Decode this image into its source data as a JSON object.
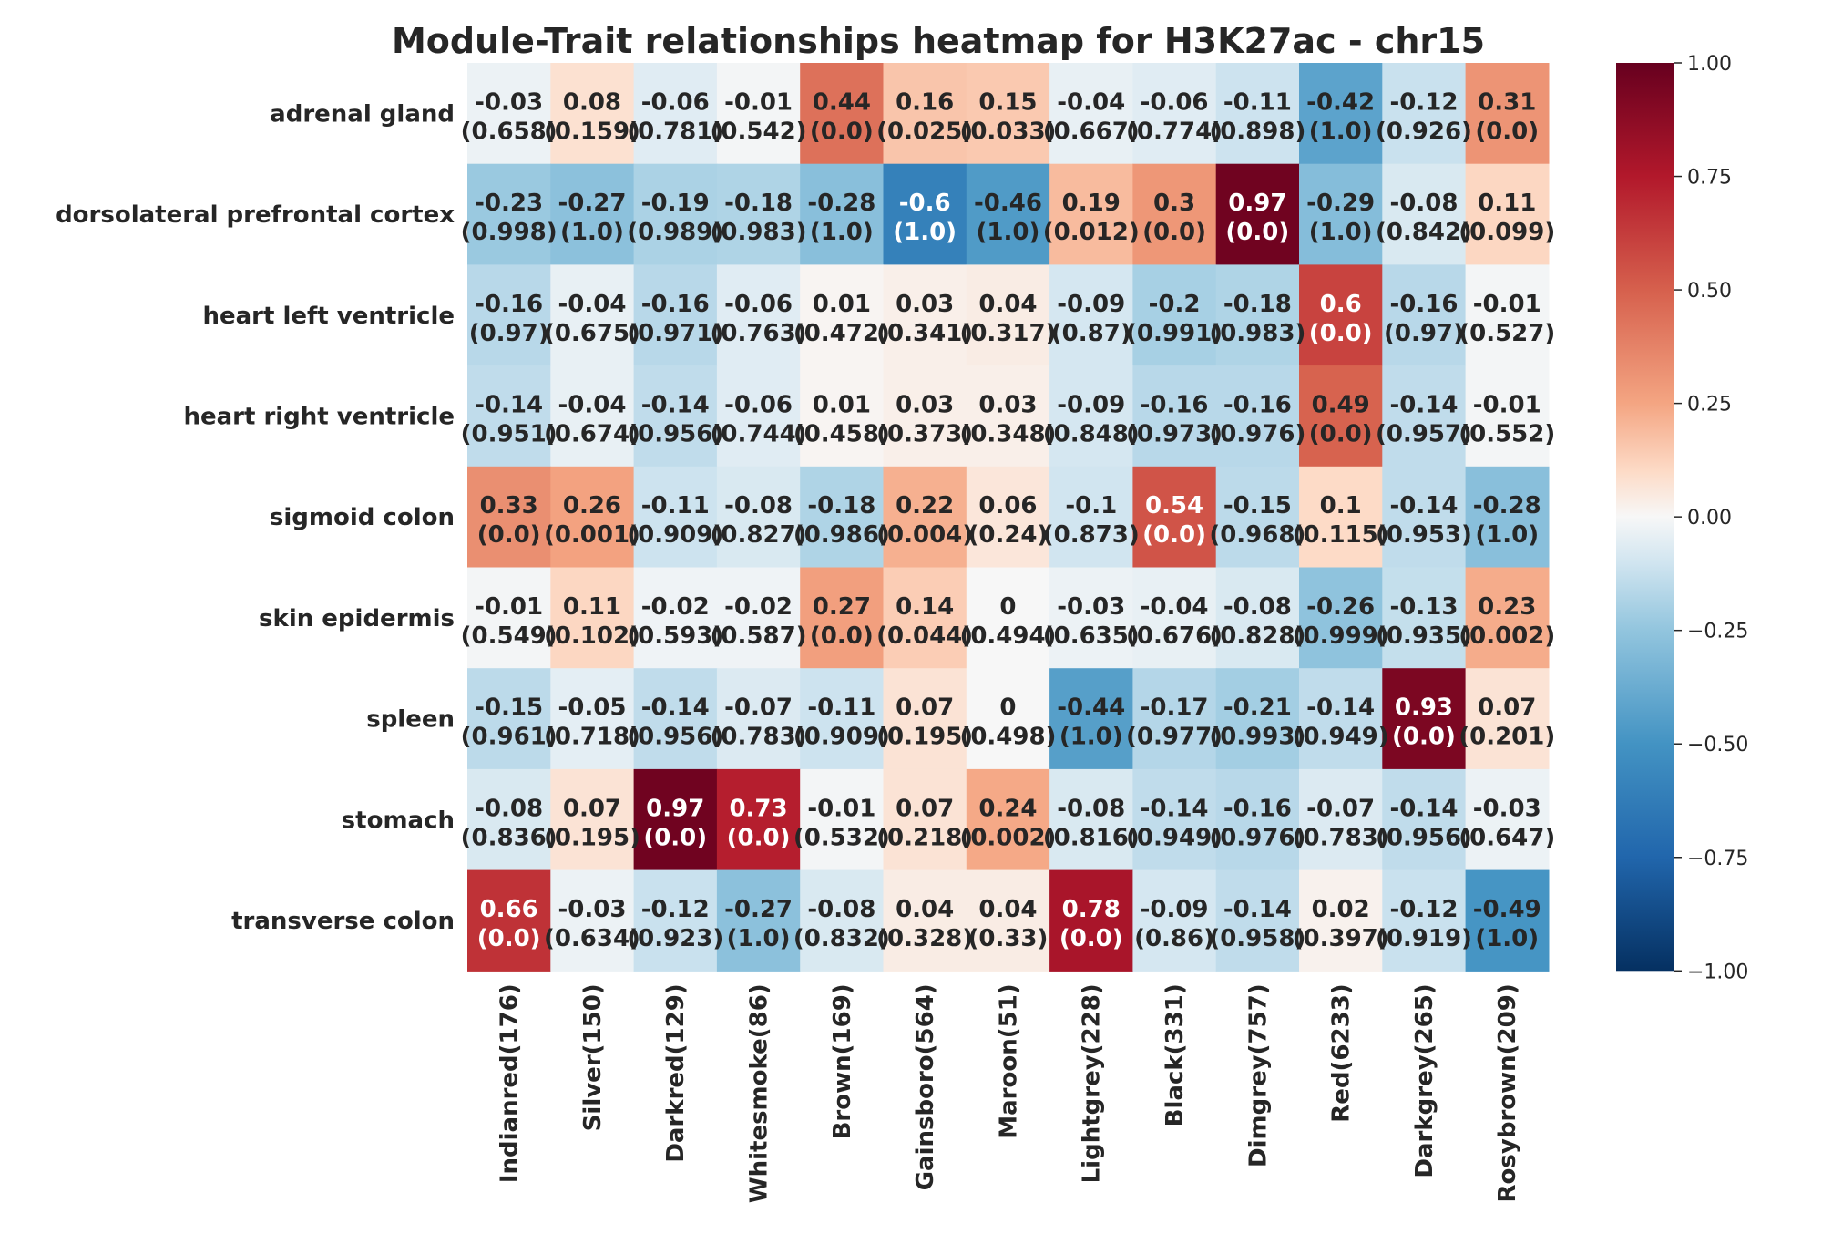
{
  "chart_data": {
    "type": "heatmap",
    "title": "Module-Trait relationships heatmap for H3K27ac - chr15",
    "xlabel": "",
    "ylabel": "",
    "rows": [
      "adrenal gland",
      "dorsolateral prefrontal cortex",
      "heart left ventricle",
      "heart right ventricle",
      "sigmoid colon",
      "skin epidermis",
      "spleen",
      "stomach",
      "transverse colon"
    ],
    "columns": [
      "Indianred(176)",
      "Silver(150)",
      "Darkred(129)",
      "Whitesmoke(86)",
      "Brown(169)",
      "Gainsboro(564)",
      "Maroon(51)",
      "Lightgrey(228)",
      "Black(331)",
      "Dimgrey(757)",
      "Red(6233)",
      "Darkgrey(265)",
      "Rosybrown(209)"
    ],
    "values": [
      [
        -0.03,
        0.08,
        -0.06,
        -0.01,
        0.44,
        0.16,
        0.15,
        -0.04,
        -0.06,
        -0.11,
        -0.42,
        -0.12,
        0.31
      ],
      [
        -0.23,
        -0.27,
        -0.19,
        -0.18,
        -0.28,
        -0.6,
        -0.46,
        0.19,
        0.3,
        0.97,
        -0.29,
        -0.08,
        0.11
      ],
      [
        -0.16,
        -0.04,
        -0.16,
        -0.06,
        0.01,
        0.03,
        0.04,
        -0.09,
        -0.2,
        -0.18,
        0.6,
        -0.16,
        -0.01
      ],
      [
        -0.14,
        -0.04,
        -0.14,
        -0.06,
        0.01,
        0.03,
        0.03,
        -0.09,
        -0.16,
        -0.16,
        0.49,
        -0.14,
        -0.01
      ],
      [
        0.33,
        0.26,
        -0.11,
        -0.08,
        -0.18,
        0.22,
        0.06,
        -0.1,
        0.54,
        -0.15,
        0.1,
        -0.14,
        -0.28
      ],
      [
        -0.01,
        0.11,
        -0.02,
        -0.02,
        0.27,
        0.14,
        0.0,
        -0.03,
        -0.04,
        -0.08,
        -0.26,
        -0.13,
        0.23
      ],
      [
        -0.15,
        -0.05,
        -0.14,
        -0.07,
        -0.11,
        0.07,
        0.0,
        -0.44,
        -0.17,
        -0.21,
        -0.14,
        0.93,
        0.07
      ],
      [
        -0.08,
        0.07,
        0.97,
        0.73,
        -0.01,
        0.07,
        0.24,
        -0.08,
        -0.14,
        -0.16,
        -0.07,
        -0.14,
        -0.03
      ],
      [
        0.66,
        -0.03,
        -0.12,
        -0.27,
        -0.08,
        0.04,
        0.04,
        0.78,
        -0.09,
        -0.14,
        0.02,
        -0.12,
        -0.49
      ]
    ],
    "pvalues": [
      [
        "0.658",
        "0.159",
        "0.781",
        "0.542",
        "0.0",
        "0.025",
        "0.033",
        "0.667",
        "0.774",
        "0.898",
        "1.0",
        "0.926",
        "0.0"
      ],
      [
        "0.998",
        "1.0",
        "0.989",
        "0.983",
        "1.0",
        "1.0",
        "1.0",
        "0.012",
        "0.0",
        "0.0",
        "1.0",
        "0.842",
        "0.099"
      ],
      [
        "0.97",
        "0.675",
        "0.971",
        "0.763",
        "0.472",
        "0.341",
        "0.317",
        "0.87",
        "0.991",
        "0.983",
        "0.0",
        "0.97",
        "0.527"
      ],
      [
        "0.951",
        "0.674",
        "0.956",
        "0.744",
        "0.458",
        "0.373",
        "0.348",
        "0.848",
        "0.973",
        "0.976",
        "0.0",
        "0.957",
        "0.552"
      ],
      [
        "0.0",
        "0.001",
        "0.909",
        "0.827",
        "0.986",
        "0.004",
        "0.24",
        "0.873",
        "0.0",
        "0.968",
        "0.115",
        "0.953",
        "1.0"
      ],
      [
        "0.549",
        "0.102",
        "0.593",
        "0.587",
        "0.0",
        "0.044",
        "0.494",
        "0.635",
        "0.676",
        "0.828",
        "0.999",
        "0.935",
        "0.002"
      ],
      [
        "0.961",
        "0.718",
        "0.956",
        "0.783",
        "0.909",
        "0.195",
        "0.498",
        "1.0",
        "0.977",
        "0.993",
        "0.949",
        "0.0",
        "0.201"
      ],
      [
        "0.836",
        "0.195",
        "0.0",
        "0.0",
        "0.532",
        "0.218",
        "0.002",
        "0.816",
        "0.949",
        "0.976",
        "0.783",
        "0.956",
        "0.647"
      ],
      [
        "0.0",
        "0.634",
        "0.923",
        "1.0",
        "0.832",
        "0.328",
        "0.33",
        "0.0",
        "0.86",
        "0.958",
        "0.397",
        "0.919",
        "1.0"
      ]
    ],
    "colorbar": {
      "min": -1.0,
      "max": 1.0,
      "ticks": [
        1.0,
        0.75,
        0.5,
        0.25,
        0.0,
        -0.25,
        -0.5,
        -0.75,
        -1.0
      ],
      "tick_labels": [
        "1.00",
        "0.75",
        "0.50",
        "0.25",
        "0.00",
        "−0.25",
        "−0.50",
        "−0.75",
        "−1.00"
      ],
      "colormap": "RdBu_r",
      "stops": [
        [
          -1.0,
          "#053061"
        ],
        [
          -0.75,
          "#2166ac"
        ],
        [
          -0.5,
          "#4393c3"
        ],
        [
          -0.25,
          "#92c5de"
        ],
        [
          -0.1,
          "#d1e5f0"
        ],
        [
          0.0,
          "#f7f7f7"
        ],
        [
          0.1,
          "#fddbc7"
        ],
        [
          0.25,
          "#f4a582"
        ],
        [
          0.5,
          "#d6604d"
        ],
        [
          0.75,
          "#b2182b"
        ],
        [
          1.0,
          "#67001f"
        ]
      ]
    },
    "grid": false,
    "legend": "colorbar-right"
  }
}
